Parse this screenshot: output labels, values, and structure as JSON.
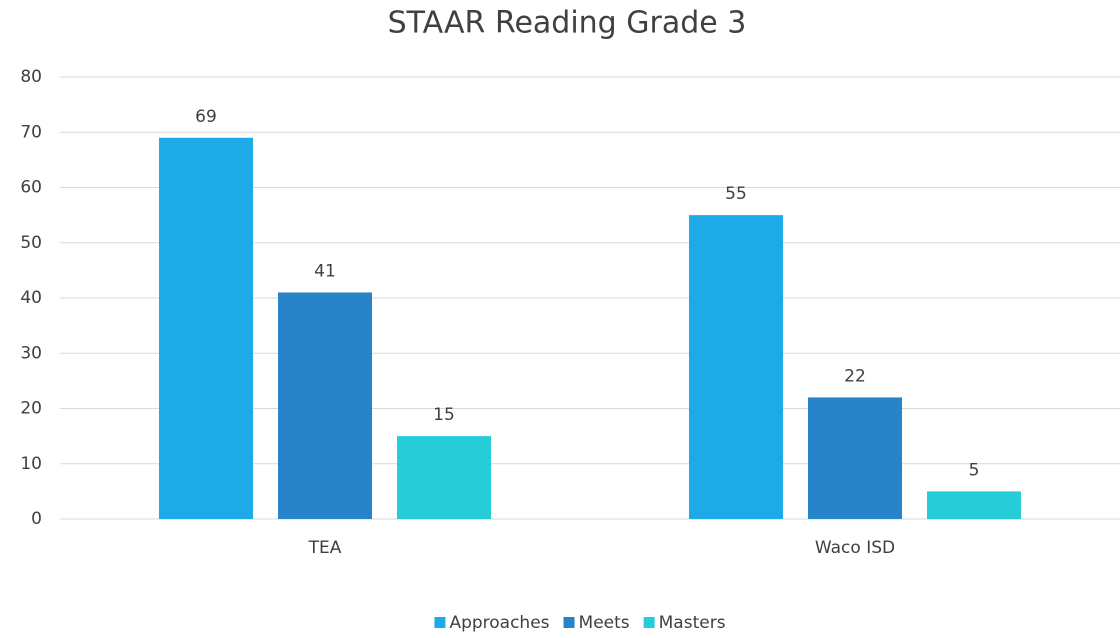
{
  "chart_data": {
    "type": "bar",
    "title": "STAAR Reading Grade 3",
    "categories": [
      "TEA",
      "Waco ISD"
    ],
    "series": [
      {
        "name": "Approaches",
        "color": "#1eaae6",
        "values": [
          69,
          55
        ]
      },
      {
        "name": "Meets",
        "color": "#2884c8",
        "values": [
          41,
          22
        ]
      },
      {
        "name": "Masters",
        "color": "#26cdd9",
        "values": [
          15,
          5
        ]
      }
    ],
    "ylim": [
      0,
      80
    ],
    "yticks": [
      0,
      10,
      20,
      30,
      40,
      50,
      60,
      70,
      80
    ],
    "grid": true,
    "legend": "bottom"
  }
}
